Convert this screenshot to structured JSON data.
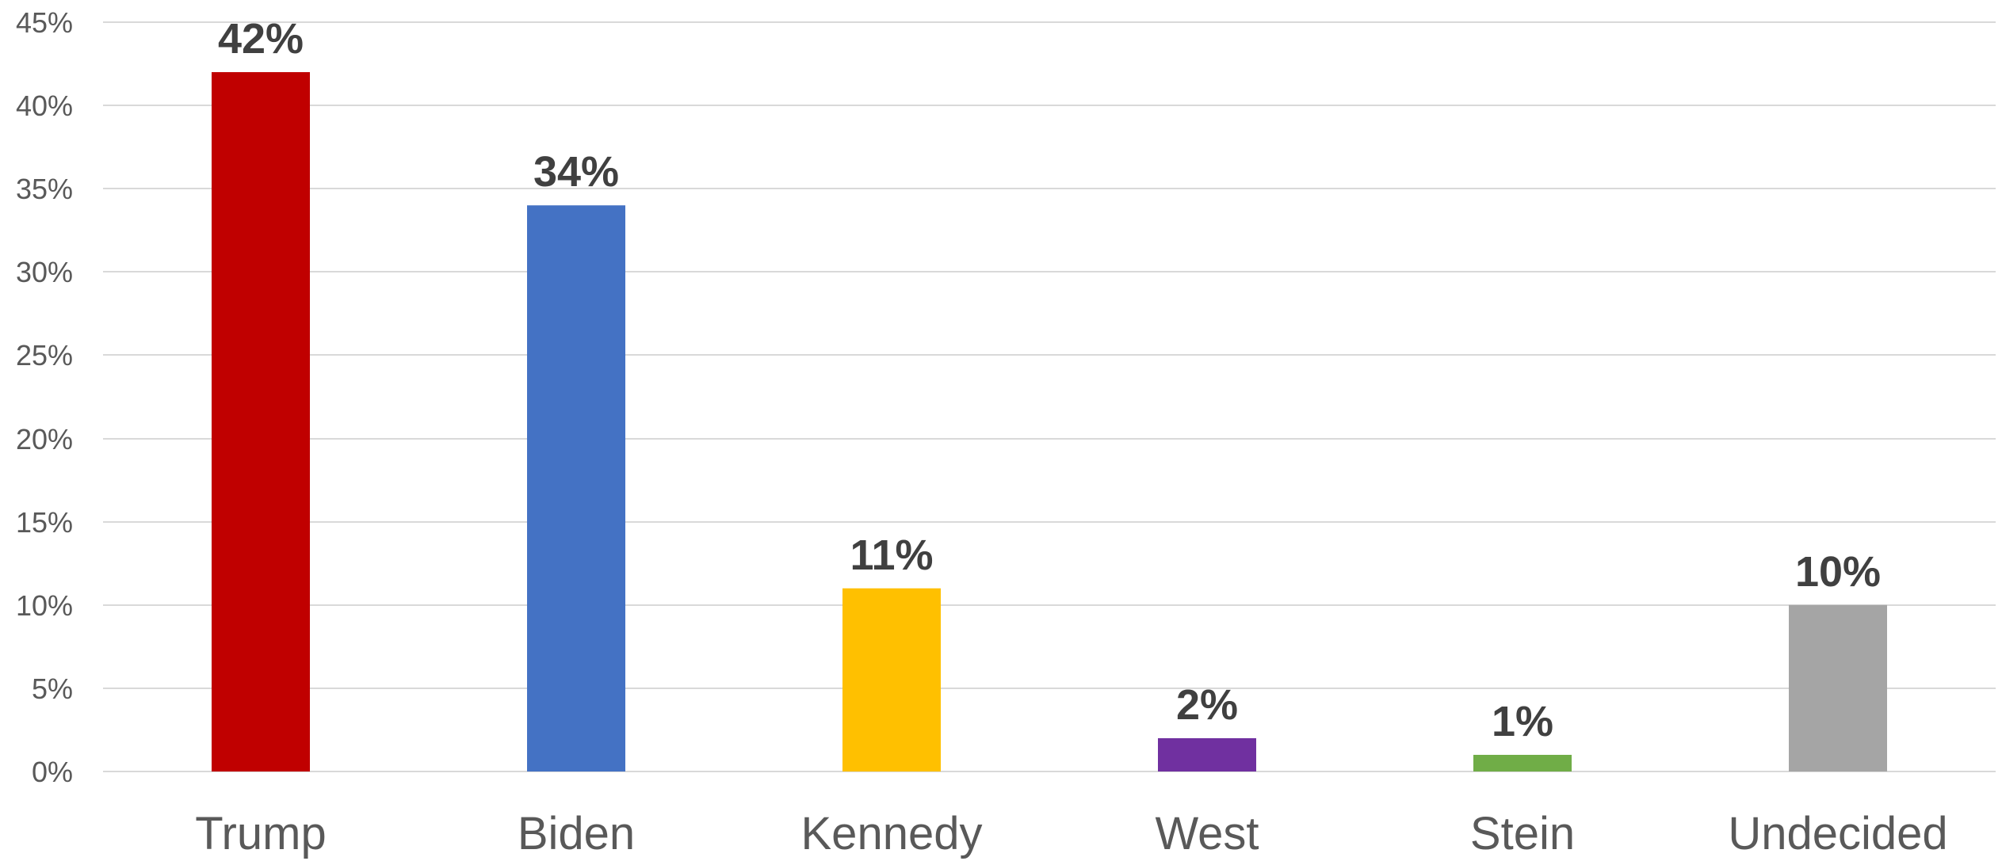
{
  "chart_data": {
    "type": "bar",
    "title": "",
    "xlabel": "",
    "ylabel": "",
    "categories": [
      "Trump",
      "Biden",
      "Kennedy",
      "West",
      "Stein",
      "Undecided"
    ],
    "values": [
      42,
      34,
      11,
      2,
      1,
      10
    ],
    "data_labels": [
      "42%",
      "34%",
      "11%",
      "2%",
      "1%",
      "10%"
    ],
    "bar_colors": [
      "#c00000",
      "#4472c4",
      "#ffc000",
      "#7030a0",
      "#70ad47",
      "#a5a5a5"
    ],
    "ylim": [
      0,
      45
    ],
    "y_ticks": [
      0,
      5,
      10,
      15,
      20,
      25,
      30,
      35,
      40,
      45
    ],
    "y_tick_labels": [
      "0%",
      "5%",
      "10%",
      "15%",
      "20%",
      "25%",
      "30%",
      "35%",
      "40%",
      "45%"
    ],
    "y_unit": "%",
    "grid": true,
    "legend": "none"
  }
}
